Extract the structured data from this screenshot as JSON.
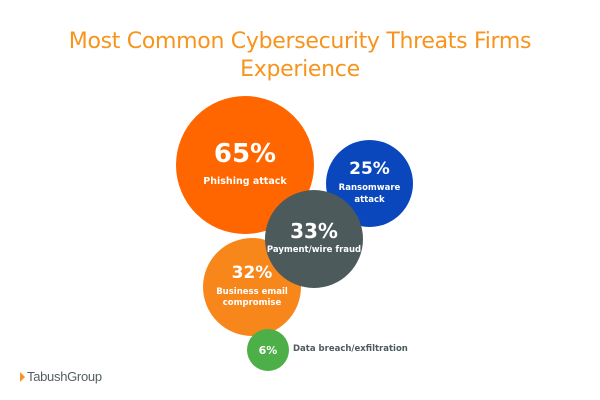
{
  "chart_data": {
    "type": "bubble",
    "title": "Most Common Cybersecurity Threats Firms Experience",
    "title_lines": [
      "Most Common Cybersecurity Threats Firms",
      "Experience"
    ],
    "categories": [
      "Phishing attack",
      "Ransomware attack",
      "Payment/wire fraud",
      "Business email compromise",
      "Data breach/exfiltration"
    ],
    "values": [
      65,
      25,
      33,
      32,
      6
    ],
    "unit": "%",
    "items": [
      {
        "pct": "65%",
        "label": "Phishing attack",
        "value": 65,
        "color": "#ff6600"
      },
      {
        "pct": "25%",
        "label_lines": [
          "Ransomware",
          "attack"
        ],
        "label": "Ransomware attack",
        "value": 25,
        "color": "#0a47bd"
      },
      {
        "pct": "33%",
        "label": "Payment/wire fraud",
        "value": 33,
        "color": "#4d5a5c"
      },
      {
        "pct": "32%",
        "label_lines": [
          "Business email",
          "compromise"
        ],
        "label": "Business email compromise",
        "value": 32,
        "color": "#f7871b"
      },
      {
        "pct": "6%",
        "label": "Data breach/exfiltration",
        "value": 6,
        "color": "#4caf47"
      }
    ]
  },
  "brand": {
    "name": "TabushGroup",
    "accent": "#f7941d"
  }
}
